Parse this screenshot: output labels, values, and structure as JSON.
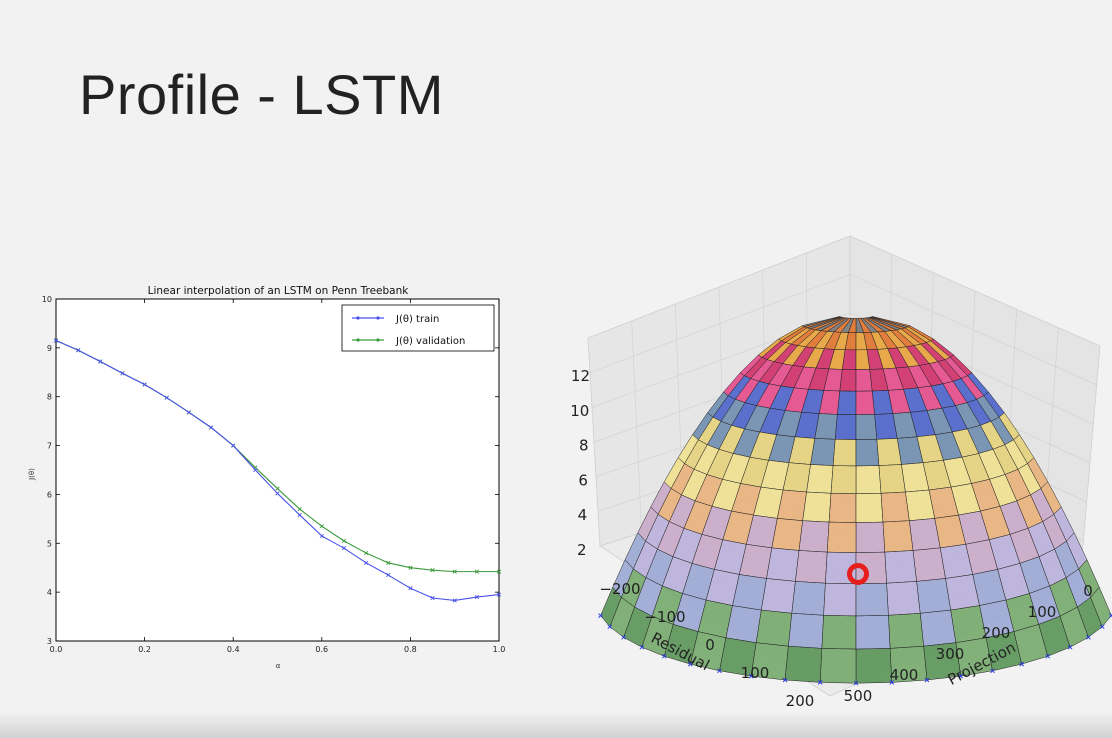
{
  "slide": {
    "title": "Profile - LSTM"
  },
  "chart_data": [
    {
      "type": "line",
      "title": "Linear interpolation of an LSTM on Penn Treebank",
      "xlabel": "α",
      "ylabel": "J(θ)",
      "xlim": [
        0.0,
        1.0
      ],
      "ylim": [
        3,
        10
      ],
      "xticks": [
        "0.0",
        "0.2",
        "0.4",
        "0.6",
        "0.8",
        "1.0"
      ],
      "yticks": [
        "3",
        "4",
        "5",
        "6",
        "7",
        "8",
        "9",
        "10"
      ],
      "grid": false,
      "legend": "top-right",
      "x": [
        0.0,
        0.05,
        0.1,
        0.15,
        0.2,
        0.25,
        0.3,
        0.35,
        0.4,
        0.45,
        0.5,
        0.55,
        0.6,
        0.65,
        0.7,
        0.75,
        0.8,
        0.85,
        0.9,
        0.95,
        1.0
      ],
      "series": [
        {
          "name": "J(θ) train",
          "color": "#4a52e8",
          "values": [
            9.15,
            8.95,
            8.72,
            8.48,
            8.25,
            7.98,
            7.68,
            7.37,
            7.0,
            6.5,
            6.02,
            5.58,
            5.15,
            4.9,
            4.6,
            4.35,
            4.08,
            3.88,
            3.83,
            3.9,
            3.95
          ]
        },
        {
          "name": "J(θ) validation",
          "color": "#3c9a3c",
          "values": [
            9.15,
            8.95,
            8.72,
            8.48,
            8.25,
            7.98,
            7.68,
            7.37,
            7.0,
            6.55,
            6.12,
            5.7,
            5.35,
            5.05,
            4.8,
            4.6,
            4.5,
            4.45,
            4.42,
            4.42,
            4.42
          ]
        }
      ]
    },
    {
      "type": "surface3d",
      "xlabel": "Residual",
      "ylabel": "Projection",
      "xticks": [
        "−200",
        "−100",
        "0",
        "100",
        "200"
      ],
      "yticks": [
        "0",
        "100",
        "200",
        "300",
        "400",
        "500"
      ],
      "zticks": [
        "2",
        "4",
        "6",
        "8",
        "10",
        "12"
      ],
      "zlim": [
        2,
        13
      ],
      "marker_color": "#e61e1e"
    }
  ]
}
